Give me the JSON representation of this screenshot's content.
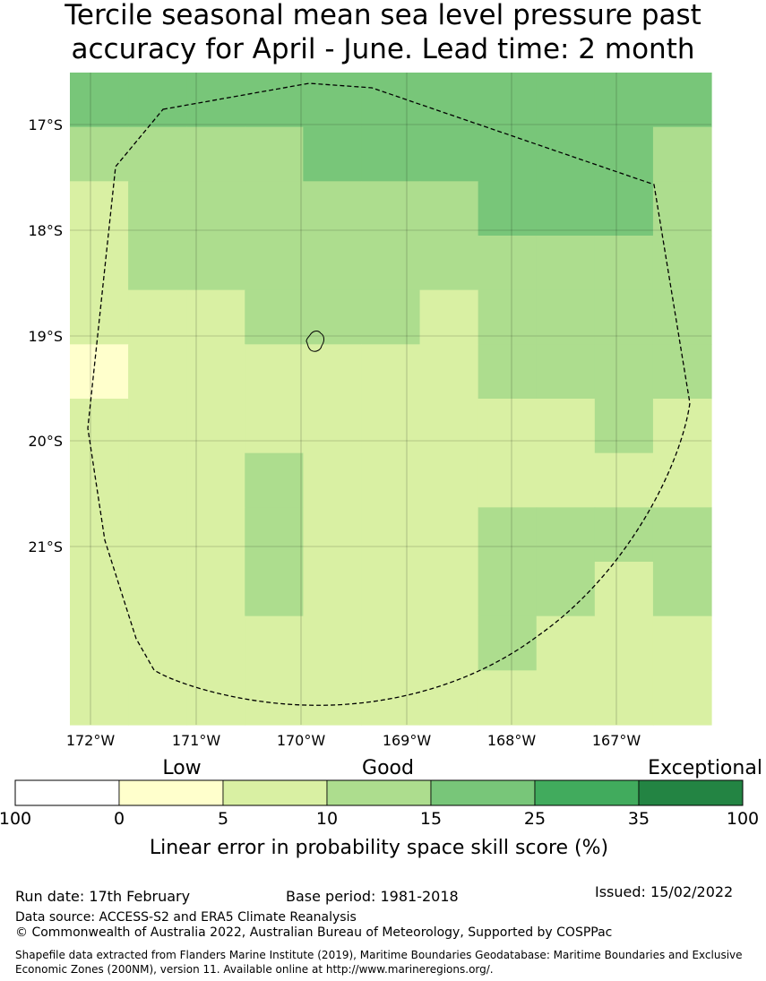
{
  "title": {
    "line1": "Tercile seasonal mean sea level pressure past",
    "line2": "accuracy for April - June. Lead time: 2 month"
  },
  "map": {
    "lat_labels": [
      "17°S",
      "18°S",
      "19°S",
      "20°S",
      "21°S"
    ],
    "lon_labels": [
      "172°W",
      "171°W",
      "170°W",
      "169°W",
      "168°W",
      "167°W"
    ],
    "grid_colors": [
      [
        "#78c679",
        "#78c679",
        "#78c679",
        "#78c679",
        "#78c679",
        "#78c679",
        "#78c679",
        "#78c679",
        "#78c679",
        "#78c679",
        "#78c679"
      ],
      [
        "#addd8e",
        "#addd8e",
        "#addd8e",
        "#addd8e",
        "#78c679",
        "#78c679",
        "#78c679",
        "#78c679",
        "#78c679",
        "#78c679",
        "#addd8e"
      ],
      [
        "#d9f0a3",
        "#addd8e",
        "#addd8e",
        "#addd8e",
        "#addd8e",
        "#addd8e",
        "#addd8e",
        "#78c679",
        "#78c679",
        "#78c679",
        "#addd8e"
      ],
      [
        "#d9f0a3",
        "#addd8e",
        "#addd8e",
        "#addd8e",
        "#addd8e",
        "#addd8e",
        "#addd8e",
        "#addd8e",
        "#addd8e",
        "#addd8e",
        "#addd8e"
      ],
      [
        "#d9f0a3",
        "#d9f0a3",
        "#d9f0a3",
        "#addd8e",
        "#addd8e",
        "#addd8e",
        "#d9f0a3",
        "#addd8e",
        "#addd8e",
        "#addd8e",
        "#addd8e"
      ],
      [
        "#ffffcc",
        "#d9f0a3",
        "#d9f0a3",
        "#d9f0a3",
        "#d9f0a3",
        "#d9f0a3",
        "#d9f0a3",
        "#addd8e",
        "#addd8e",
        "#addd8e",
        "#addd8e"
      ],
      [
        "#d9f0a3",
        "#d9f0a3",
        "#d9f0a3",
        "#d9f0a3",
        "#d9f0a3",
        "#d9f0a3",
        "#d9f0a3",
        "#d9f0a3",
        "#d9f0a3",
        "#addd8e",
        "#d9f0a3"
      ],
      [
        "#d9f0a3",
        "#d9f0a3",
        "#d9f0a3",
        "#addd8e",
        "#d9f0a3",
        "#d9f0a3",
        "#d9f0a3",
        "#d9f0a3",
        "#d9f0a3",
        "#d9f0a3",
        "#d9f0a3"
      ],
      [
        "#d9f0a3",
        "#d9f0a3",
        "#d9f0a3",
        "#addd8e",
        "#d9f0a3",
        "#d9f0a3",
        "#d9f0a3",
        "#addd8e",
        "#addd8e",
        "#addd8e",
        "#addd8e"
      ],
      [
        "#d9f0a3",
        "#d9f0a3",
        "#d9f0a3",
        "#addd8e",
        "#d9f0a3",
        "#d9f0a3",
        "#d9f0a3",
        "#addd8e",
        "#addd8e",
        "#d9f0a3",
        "#addd8e"
      ],
      [
        "#d9f0a3",
        "#d9f0a3",
        "#d9f0a3",
        "#d9f0a3",
        "#d9f0a3",
        "#d9f0a3",
        "#d9f0a3",
        "#addd8e",
        "#d9f0a3",
        "#d9f0a3",
        "#d9f0a3"
      ],
      [
        "#d9f0a3",
        "#d9f0a3",
        "#d9f0a3",
        "#d9f0a3",
        "#d9f0a3",
        "#d9f0a3",
        "#d9f0a3",
        "#d9f0a3",
        "#d9f0a3",
        "#d9f0a3",
        "#d9f0a3"
      ]
    ]
  },
  "legend": {
    "categories": [
      "Low",
      "Good",
      "Exceptional"
    ],
    "colors": [
      "#ffffff",
      "#ffffcc",
      "#d9f0a3",
      "#addd8e",
      "#78c679",
      "#41ab5d",
      "#238443"
    ],
    "ticks": [
      "100",
      "0",
      "5",
      "10",
      "15",
      "25",
      "35",
      "100"
    ],
    "label": "Linear error in probability space skill score (%)"
  },
  "footer": {
    "run_date": "Run date: 17th February",
    "base_period": "Base period: 1981-2018",
    "issued": "Issued: 15/02/2022",
    "data_source": "Data source: ACCESS-S2 and ERA5 Climate Reanalysis",
    "copyright": "© Commonwealth of Australia 2022, Australian Bureau of Meteorology, Supported by COSPPac",
    "shapefile": "Shapefile data extracted from Flanders Marine Institute (2019), Maritime Boundaries Geodatabase: Maritime Boundaries and Exclusive Economic Zones (200NM), version 11. Available online at http://www.marineregions.org/."
  }
}
